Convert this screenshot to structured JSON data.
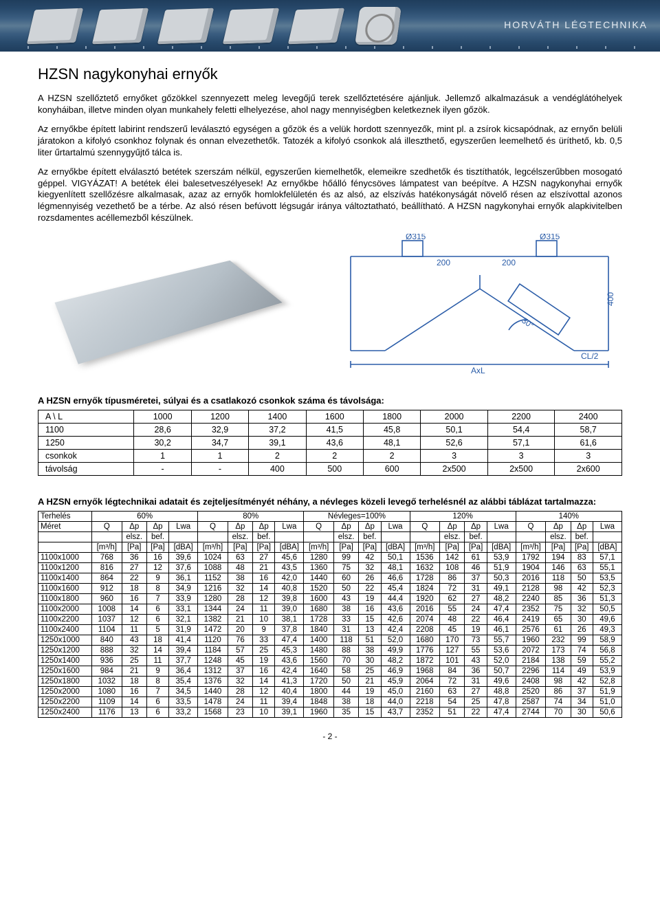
{
  "brand": "HORVÁTH LÉGTECHNIKA",
  "title": "HZSN nagykonyhai ernyők",
  "para1": "A HZSN szellőztető ernyőket gőzökkel szennyezett meleg levegőjű terek szellőztetésére ajánljuk. Jellemző alkalmazásuk a vendéglátóhelyek konyháiban, illetve minden olyan munkahely feletti elhelyezése, ahol nagy mennyiségben keletkeznek ilyen gőzök.",
  "para2": "Az ernyőkbe épített labirint rendszerű leválasztó egységen a gőzök és a velük hordott szennyezők, mint pl. a zsírok kicsapódnak, az ernyőn belüli járatokon a kifolyó csonkhoz folynak és onnan elvezethetők. Tatozék a kifolyó csonkok alá illeszthető, egyszerűen leemelhető és üríthető, kb. 0,5 liter űrtartalmú szennygyűjtő tálca is.",
  "para3": "Az ernyőkbe épített elválasztó betétek szerszám nélkül, egyszerűen kiemelhetők, elemeikre szedhetők és tisztíthatók, legcélszerűbben mosogató géppel. VIGYÁZAT! A betétek élei balesetveszélyesek! Az ernyőkbe hőálló fénycsöves lámpatest van beépítve. A HZSN nagykonyhai ernyők kiegyenlített szellőzésre alkalmasak, azaz az ernyők homlokfelületén és az alsó, az elszívás hatékonyságát növelő résen az elszívottal azonos légmennyiség vezethető be a térbe. Az alsó résen befúvott légsugár iránya változtatható, beállítható. A HZSN nagykonyhai ernyők alapkivitelben rozsdamentes acéllemezből készülnek.",
  "diag": {
    "color": "#2a5ca8",
    "d1": "Ø315",
    "d2": "Ø315",
    "w1": "200",
    "w2": "200",
    "ang": "30°",
    "h": "400",
    "axl": "AxL",
    "cl": "CL/2"
  },
  "table1": {
    "title": "A HZSN ernyők típusméretei, súlyai és a csatlakozó csonkok száma és távolsága:",
    "header": [
      "A \\ L",
      "1000",
      "1200",
      "1400",
      "1600",
      "1800",
      "2000",
      "2200",
      "2400"
    ],
    "rows": [
      [
        "1100",
        "28,6",
        "32,9",
        "37,2",
        "41,5",
        "45,8",
        "50,1",
        "54,4",
        "58,7"
      ],
      [
        "1250",
        "30,2",
        "34,7",
        "39,1",
        "43,6",
        "48,1",
        "52,6",
        "57,1",
        "61,6"
      ],
      [
        "csonkok",
        "1",
        "1",
        "2",
        "2",
        "2",
        "3",
        "3",
        "3"
      ],
      [
        "távolság",
        "-",
        "-",
        "400",
        "500",
        "600",
        "2x500",
        "2x500",
        "2x600"
      ]
    ]
  },
  "table2": {
    "title": "A HZSN ernyők légtechnikai adatait és zejteljesítményét néhány, a névleges közeli levegő terhelésnél az alábbi táblázat tartalmazza:",
    "loadHeader": [
      "Terhelés",
      "60%",
      "80%",
      "Névleges=100%",
      "120%",
      "140%"
    ],
    "subHeaderLeft": "Méret",
    "subCols": [
      "Q",
      "Δp",
      "Δp",
      "Lwa"
    ],
    "subSubLeft": "elsz.",
    "subSubRight": "bef.",
    "units": [
      "[m³/h]",
      "[Pa]",
      "[Pa]",
      "[dBA]"
    ],
    "rows": [
      [
        "1100x1000",
        "768",
        "36",
        "16",
        "39,6",
        "1024",
        "63",
        "27",
        "45,6",
        "1280",
        "99",
        "42",
        "50,1",
        "1536",
        "142",
        "61",
        "53,9",
        "1792",
        "194",
        "83",
        "57,1"
      ],
      [
        "1100x1200",
        "816",
        "27",
        "12",
        "37,6",
        "1088",
        "48",
        "21",
        "43,5",
        "1360",
        "75",
        "32",
        "48,1",
        "1632",
        "108",
        "46",
        "51,9",
        "1904",
        "146",
        "63",
        "55,1"
      ],
      [
        "1100x1400",
        "864",
        "22",
        "9",
        "36,1",
        "1152",
        "38",
        "16",
        "42,0",
        "1440",
        "60",
        "26",
        "46,6",
        "1728",
        "86",
        "37",
        "50,3",
        "2016",
        "118",
        "50",
        "53,5"
      ],
      [
        "1100x1600",
        "912",
        "18",
        "8",
        "34,9",
        "1216",
        "32",
        "14",
        "40,8",
        "1520",
        "50",
        "22",
        "45,4",
        "1824",
        "72",
        "31",
        "49,1",
        "2128",
        "98",
        "42",
        "52,3"
      ],
      [
        "1100x1800",
        "960",
        "16",
        "7",
        "33,9",
        "1280",
        "28",
        "12",
        "39,8",
        "1600",
        "43",
        "19",
        "44,4",
        "1920",
        "62",
        "27",
        "48,2",
        "2240",
        "85",
        "36",
        "51,3"
      ],
      [
        "1100x2000",
        "1008",
        "14",
        "6",
        "33,1",
        "1344",
        "24",
        "11",
        "39,0",
        "1680",
        "38",
        "16",
        "43,6",
        "2016",
        "55",
        "24",
        "47,4",
        "2352",
        "75",
        "32",
        "50,5"
      ],
      [
        "1100x2200",
        "1037",
        "12",
        "6",
        "32,1",
        "1382",
        "21",
        "10",
        "38,1",
        "1728",
        "33",
        "15",
        "42,6",
        "2074",
        "48",
        "22",
        "46,4",
        "2419",
        "65",
        "30",
        "49,6"
      ],
      [
        "1100x2400",
        "1104",
        "11",
        "5",
        "31,9",
        "1472",
        "20",
        "9",
        "37,8",
        "1840",
        "31",
        "13",
        "42,4",
        "2208",
        "45",
        "19",
        "46,1",
        "2576",
        "61",
        "26",
        "49,3"
      ],
      [
        "1250x1000",
        "840",
        "43",
        "18",
        "41,4",
        "1120",
        "76",
        "33",
        "47,4",
        "1400",
        "118",
        "51",
        "52,0",
        "1680",
        "170",
        "73",
        "55,7",
        "1960",
        "232",
        "99",
        "58,9"
      ],
      [
        "1250x1200",
        "888",
        "32",
        "14",
        "39,4",
        "1184",
        "57",
        "25",
        "45,3",
        "1480",
        "88",
        "38",
        "49,9",
        "1776",
        "127",
        "55",
        "53,6",
        "2072",
        "173",
        "74",
        "56,8"
      ],
      [
        "1250x1400",
        "936",
        "25",
        "11",
        "37,7",
        "1248",
        "45",
        "19",
        "43,6",
        "1560",
        "70",
        "30",
        "48,2",
        "1872",
        "101",
        "43",
        "52,0",
        "2184",
        "138",
        "59",
        "55,2"
      ],
      [
        "1250x1600",
        "984",
        "21",
        "9",
        "36,4",
        "1312",
        "37",
        "16",
        "42,4",
        "1640",
        "58",
        "25",
        "46,9",
        "1968",
        "84",
        "36",
        "50,7",
        "2296",
        "114",
        "49",
        "53,9"
      ],
      [
        "1250x1800",
        "1032",
        "18",
        "8",
        "35,4",
        "1376",
        "32",
        "14",
        "41,3",
        "1720",
        "50",
        "21",
        "45,9",
        "2064",
        "72",
        "31",
        "49,6",
        "2408",
        "98",
        "42",
        "52,8"
      ],
      [
        "1250x2000",
        "1080",
        "16",
        "7",
        "34,5",
        "1440",
        "28",
        "12",
        "40,4",
        "1800",
        "44",
        "19",
        "45,0",
        "2160",
        "63",
        "27",
        "48,8",
        "2520",
        "86",
        "37",
        "51,9"
      ],
      [
        "1250x2200",
        "1109",
        "14",
        "6",
        "33,5",
        "1478",
        "24",
        "11",
        "39,4",
        "1848",
        "38",
        "18",
        "44,0",
        "2218",
        "54",
        "25",
        "47,8",
        "2587",
        "74",
        "34",
        "51,0"
      ],
      [
        "1250x2400",
        "1176",
        "13",
        "6",
        "33,2",
        "1568",
        "23",
        "10",
        "39,1",
        "1960",
        "35",
        "15",
        "43,7",
        "2352",
        "51",
        "22",
        "47,4",
        "2744",
        "70",
        "30",
        "50,6"
      ]
    ]
  },
  "pagenum": "- 2 -"
}
